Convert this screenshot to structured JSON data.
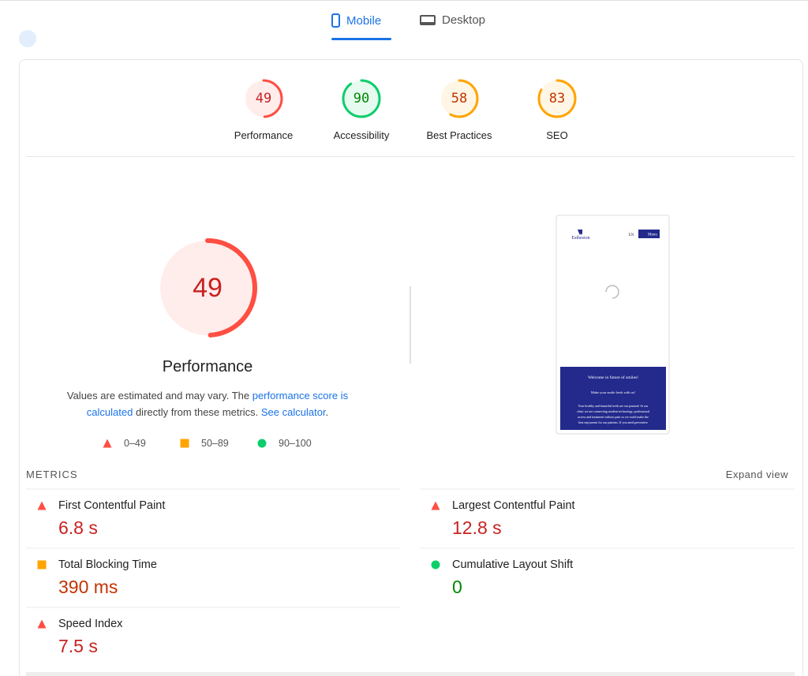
{
  "tabs": [
    {
      "label": "Mobile",
      "active": true
    },
    {
      "label": "Desktop",
      "active": false
    }
  ],
  "scores": [
    {
      "value": 49,
      "label": "Performance",
      "color": "#ff4e42",
      "text_color": "#c7221f"
    },
    {
      "value": 90,
      "label": "Accessibility",
      "color": "#0cce6b",
      "text_color": "#008800"
    },
    {
      "value": 58,
      "label": "Best Practices",
      "color": "#ffa400",
      "text_color": "#c33300"
    },
    {
      "value": 83,
      "label": "SEO",
      "color": "#ffa400",
      "text_color": "#c33300"
    }
  ],
  "main": {
    "score": 49,
    "title": "Performance",
    "color": "#ff4e42",
    "text_color": "#c7221f",
    "description": [
      "Values are estimated and may vary. The ",
      "performance score is calculated",
      " directly from these metrics. ",
      "See calculator",
      "."
    ]
  },
  "legend": [
    {
      "shape": "triangle",
      "color": "#ff4e42",
      "label": "0–49"
    },
    {
      "shape": "square",
      "color": "#ffa400",
      "label": "50–89"
    },
    {
      "shape": "circle",
      "color": "#0cce6b",
      "label": "90–100"
    }
  ],
  "screenshot": {
    "brand": "Esthesion",
    "lang": "EN",
    "menu": "Menu",
    "headline": "Welcome in future of smiles!",
    "subline": "Make your smile fresh with us!",
    "body": [
      "Your healthy and beautiful teeth are our passion! At our",
      "clinic we are connecting modern technology, professional",
      "access and treatment without pain so we could make the",
      "best enjoyment for our patients. If you need preventive"
    ]
  },
  "metrics_header": "METRICS",
  "expand": "Expand view",
  "metrics": [
    {
      "name": "First Contentful Paint",
      "value": "6.8 s",
      "icon": "triangle",
      "color": "#ff4e42",
      "text_color": "#c7221f"
    },
    {
      "name": "Largest Contentful Paint",
      "value": "12.8 s",
      "icon": "triangle",
      "color": "#ff4e42",
      "text_color": "#c7221f"
    },
    {
      "name": "Total Blocking Time",
      "value": "390 ms",
      "icon": "square",
      "color": "#ffa400",
      "text_color": "#c33300"
    },
    {
      "name": "Cumulative Layout Shift",
      "value": "0",
      "icon": "circle",
      "color": "#0cce6b",
      "text_color": "#008800"
    },
    {
      "name": "Speed Index",
      "value": "7.5 s",
      "icon": "triangle",
      "color": "#ff4e42",
      "text_color": "#c7221f"
    }
  ]
}
